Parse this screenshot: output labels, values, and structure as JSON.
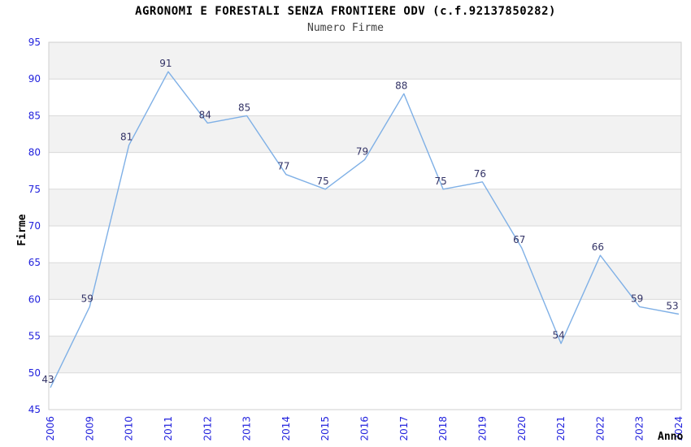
{
  "chart_data": {
    "type": "line",
    "title": "AGRONOMI E FORESTALI SENZA FRONTIERE ODV (c.f.92137850282)",
    "subtitle": "Numero Firme",
    "xlabel": "Anno",
    "ylabel": "Firme",
    "categories": [
      "2006",
      "2009",
      "2010",
      "2011",
      "2012",
      "2013",
      "2014",
      "2015",
      "2016",
      "2017",
      "2018",
      "2019",
      "2020",
      "2021",
      "2022",
      "2023",
      "2024"
    ],
    "series": [
      {
        "name": "Numero Firme",
        "values": [
          43,
          59,
          81,
          91,
          84,
          85,
          77,
          75,
          79,
          88,
          75,
          76,
          67,
          54,
          66,
          59,
          53
        ]
      }
    ],
    "rendered_line_values": [
      48,
      59,
      81,
      91,
      84,
      85,
      77,
      75,
      79,
      88,
      75,
      76,
      67,
      54,
      66,
      59,
      58
    ],
    "y_ticks": [
      45,
      50,
      55,
      60,
      65,
      70,
      75,
      80,
      85,
      90,
      95
    ],
    "ylim": [
      45,
      95
    ],
    "grid": "horizontal",
    "band_fill": "alternating",
    "legend": "none",
    "colors": {
      "line": "#7fb0e6",
      "tick_labels": "#2222dd",
      "data_labels": "#333366",
      "band": "#f2f2f2",
      "band_alt": "#ffffff",
      "gridline": "#d9d9d9",
      "plot_border": "#cfcfcf",
      "title": "#000000",
      "subtitle": "#404040",
      "background": "#ffffff"
    }
  }
}
